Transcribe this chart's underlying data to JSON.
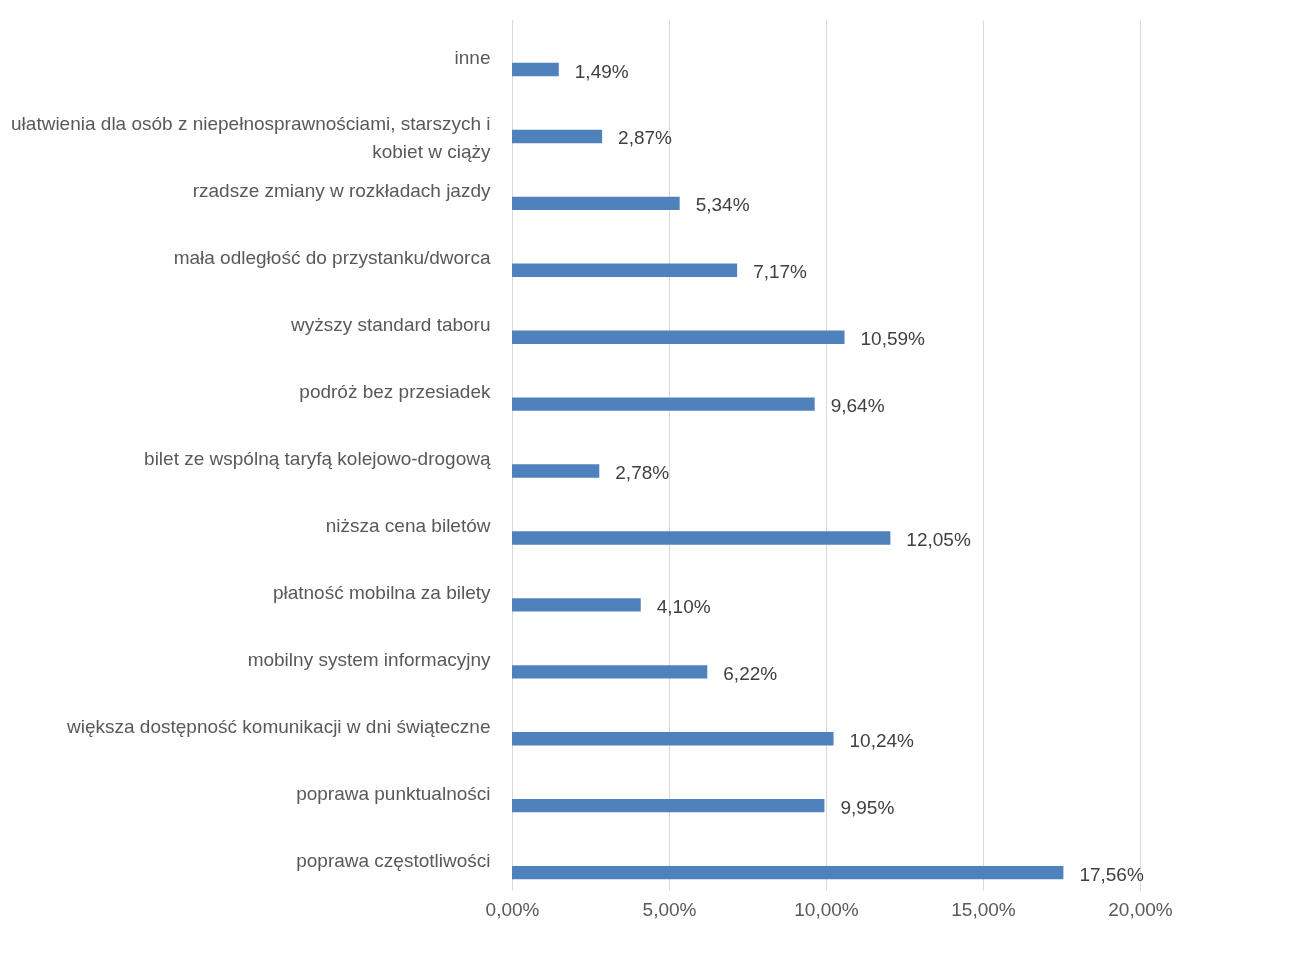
{
  "chart_data": {
    "type": "bar",
    "orientation": "horizontal",
    "categories": [
      "inne",
      "ułatwienia dla osób z niepełnosprawnościami, starszych i kobiet w ciąży",
      "rzadsze zmiany w rozkładach jazdy",
      "mała odległość do przystanku/dworca",
      "wyższy standard taboru",
      "podróż bez przesiadek",
      "bilet ze wspólną taryfą kolejowo-drogową",
      "niższa cena biletów",
      "płatność mobilna za bilety",
      "mobilny system informacyjny",
      "większa dostępność komunikacji w dni świąteczne",
      "poprawa punktualności",
      "poprawa częstotliwości"
    ],
    "values": [
      1.49,
      2.87,
      5.34,
      7.17,
      10.59,
      9.64,
      2.78,
      12.05,
      4.1,
      6.22,
      10.24,
      9.95,
      17.56
    ],
    "value_labels": [
      "1,49%",
      "2,87%",
      "5,34%",
      "7,17%",
      "10,59%",
      "9,64%",
      "2,78%",
      "12,05%",
      "4,10%",
      "6,22%",
      "10,24%",
      "9,95%",
      "17,56%"
    ],
    "color": "#4f81bd",
    "xlim": [
      0,
      20
    ],
    "xticks": [
      {
        "value": 0,
        "label": "0,00%"
      },
      {
        "value": 5,
        "label": "5,00%"
      },
      {
        "value": 10,
        "label": "10,00%"
      },
      {
        "value": 15,
        "label": "15,00%"
      },
      {
        "value": 20,
        "label": "20,00%"
      }
    ],
    "grid": "x"
  }
}
